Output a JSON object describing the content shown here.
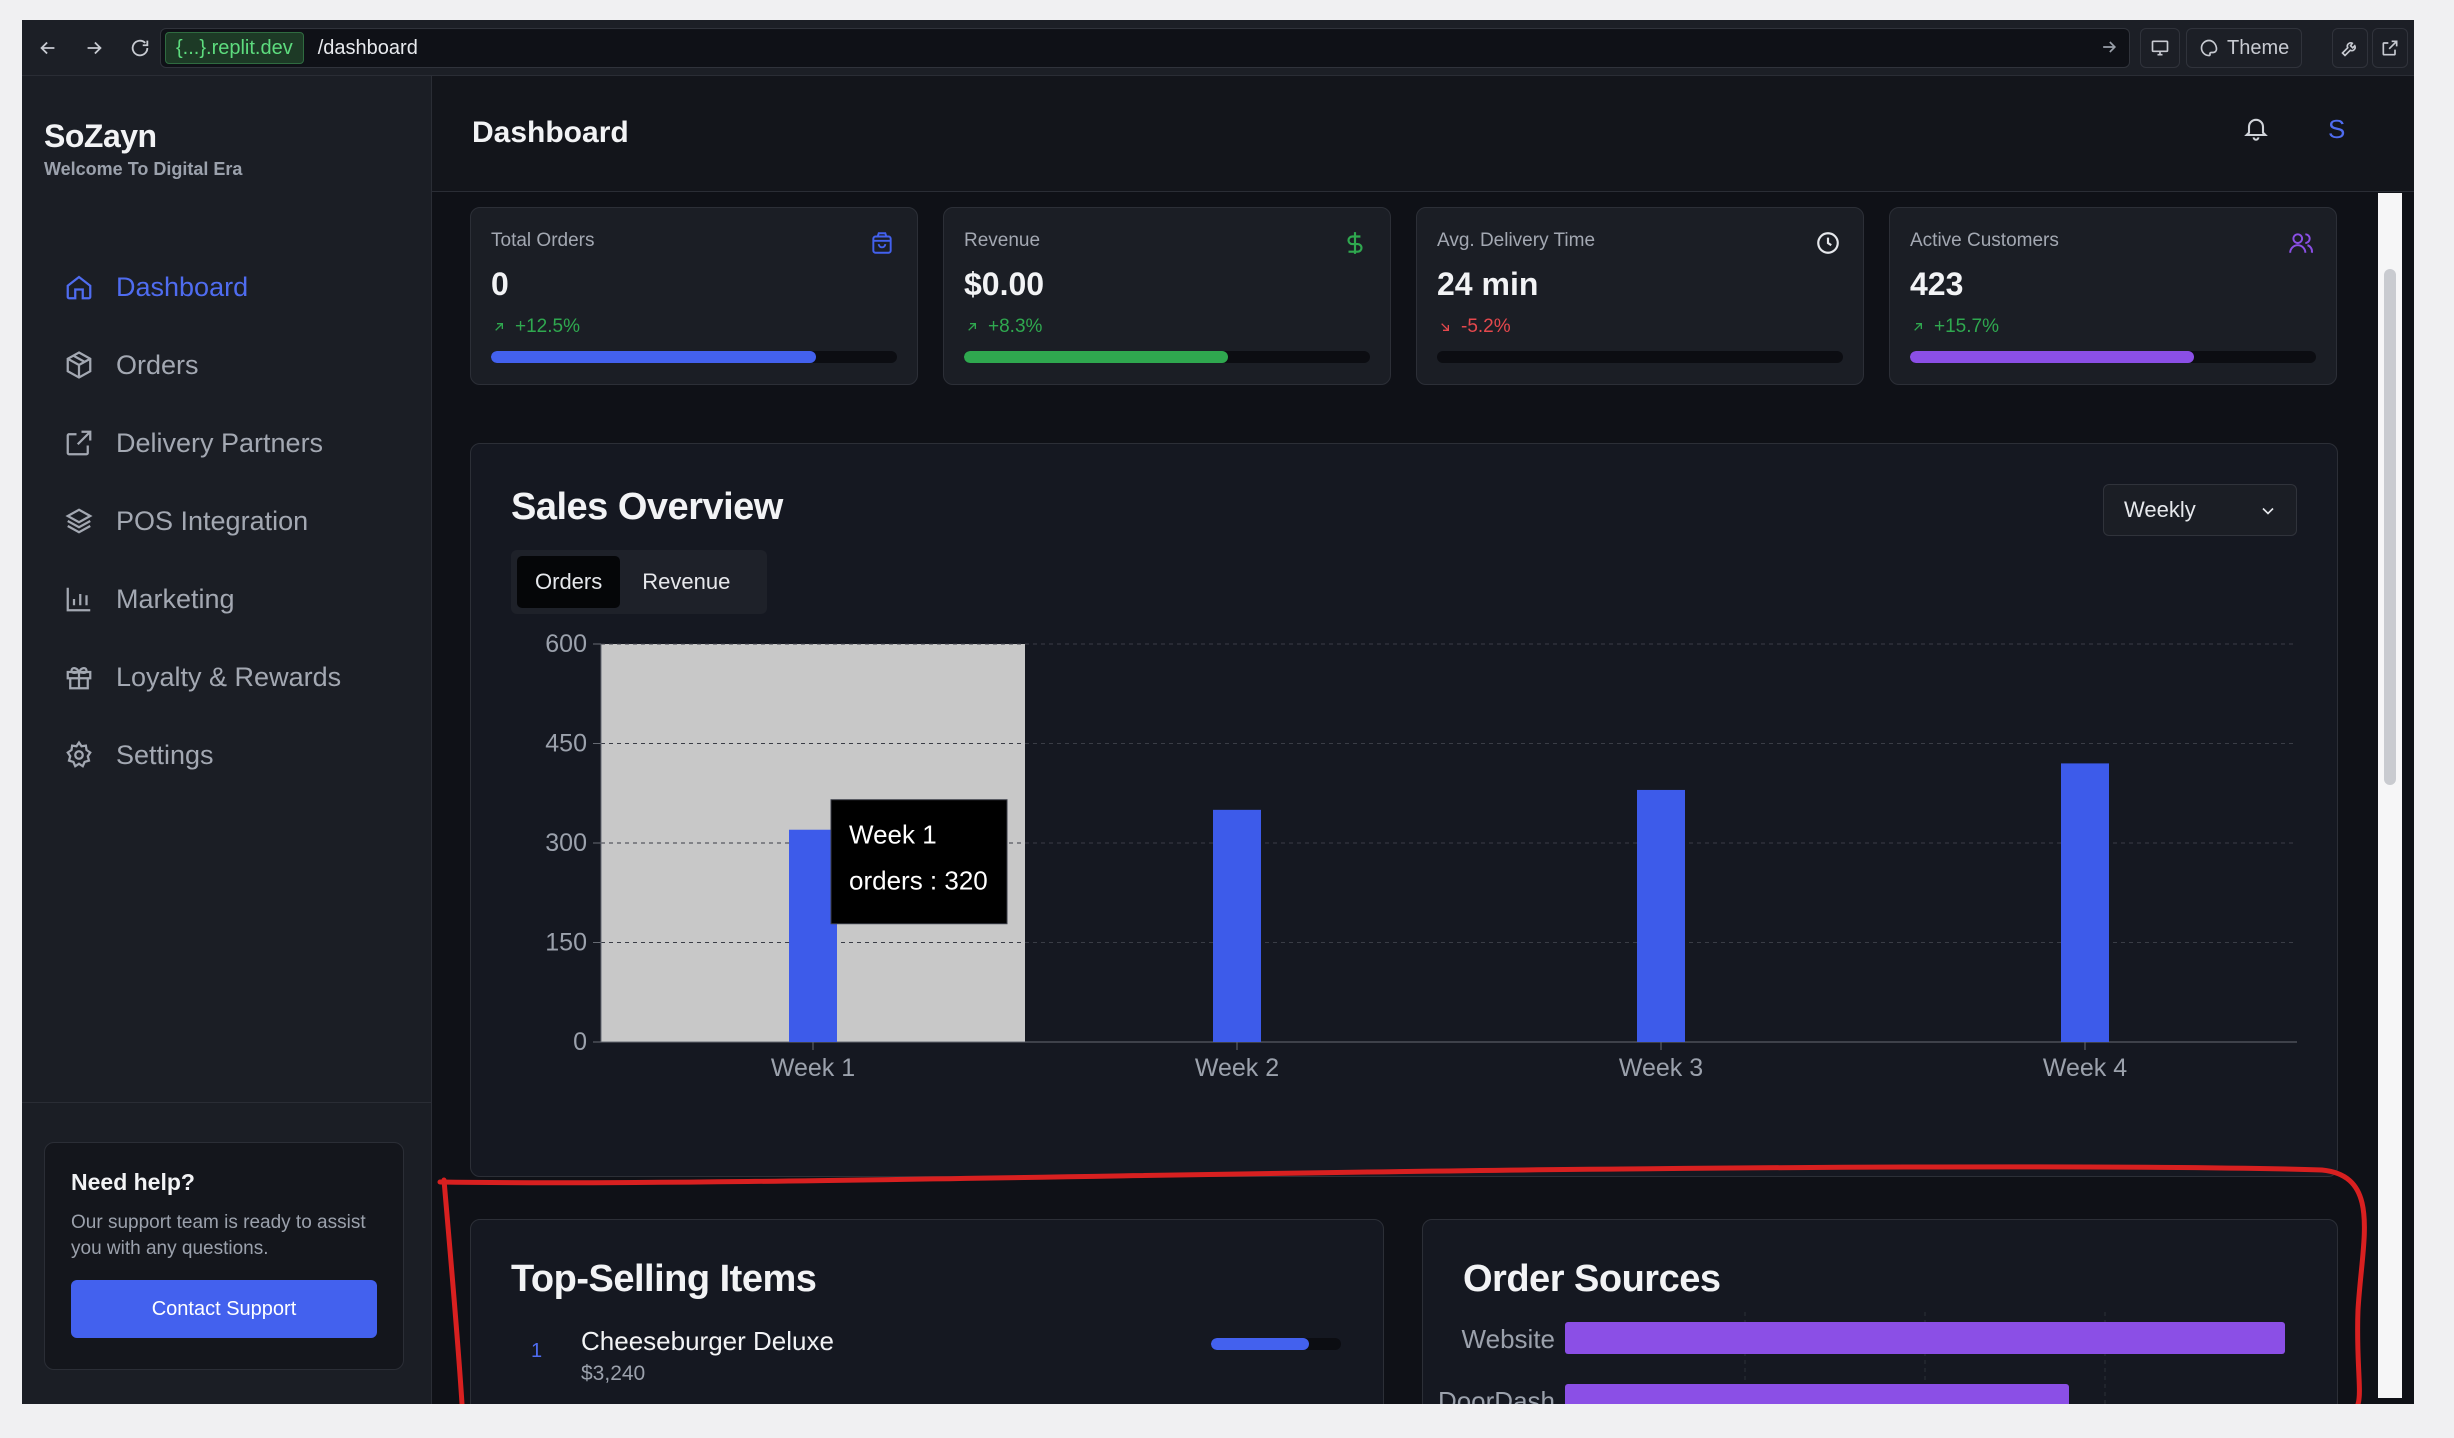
{
  "browser": {
    "url_host": "{...}.replit.dev",
    "url_path": "/dashboard",
    "theme_label": "Theme"
  },
  "sidebar": {
    "brand": "SoZayn",
    "tagline": "Welcome To Digital Era",
    "items": [
      {
        "label": "Dashboard",
        "icon": "home-icon",
        "active": true
      },
      {
        "label": "Orders",
        "icon": "package-icon",
        "active": false
      },
      {
        "label": "Delivery Partners",
        "icon": "external-link-icon",
        "active": false
      },
      {
        "label": "POS Integration",
        "icon": "layers-icon",
        "active": false
      },
      {
        "label": "Marketing",
        "icon": "bar-chart-icon",
        "active": false
      },
      {
        "label": "Loyalty & Rewards",
        "icon": "gift-icon",
        "active": false
      },
      {
        "label": "Settings",
        "icon": "settings-icon",
        "active": false
      }
    ],
    "help": {
      "title": "Need help?",
      "text": "Our support team is ready to assist you with any questions.",
      "button": "Contact Support"
    }
  },
  "header": {
    "title": "Dashboard",
    "avatar_initial": "S"
  },
  "stats": [
    {
      "label": "Total Orders",
      "value": "0",
      "change": "+12.5%",
      "trend": "up",
      "progress": 0.8,
      "color": "#4361ee",
      "icon": "shopping-bag-icon"
    },
    {
      "label": "Revenue",
      "value": "$0.00",
      "change": "+8.3%",
      "trend": "up",
      "progress": 0.65,
      "color": "#2fa84f",
      "icon": "dollar-icon"
    },
    {
      "label": "Avg. Delivery Time",
      "value": "24 min",
      "change": "-5.2%",
      "trend": "down",
      "progress": 0.0,
      "color": "#e5484d",
      "icon": "clock-icon"
    },
    {
      "label": "Active Customers",
      "value": "423",
      "change": "+15.7%",
      "trend": "up",
      "progress": 0.7,
      "color": "#8b4fe6",
      "icon": "users-icon"
    }
  ],
  "sales": {
    "title": "Sales Overview",
    "period": "Weekly",
    "tabs": [
      "Orders",
      "Revenue"
    ],
    "active_tab": "Orders",
    "tooltip": {
      "title": "Week 1",
      "text": "orders : 320"
    }
  },
  "chart_data": {
    "type": "bar",
    "categories": [
      "Week 1",
      "Week 2",
      "Week 3",
      "Week 4"
    ],
    "series": [
      {
        "name": "orders",
        "values": [
          320,
          350,
          380,
          420
        ]
      }
    ],
    "yticks": [
      0,
      150,
      300,
      450,
      600
    ],
    "ylim": [
      0,
      600
    ],
    "grid": true,
    "bar_color": "#3d5bea",
    "highlighted": "Week 1"
  },
  "top_items": {
    "title": "Top-Selling Items",
    "items": [
      {
        "rank": "1",
        "name": "Cheeseburger Deluxe",
        "price": "$3,240",
        "share": 0.75
      }
    ]
  },
  "order_sources": {
    "title": "Order Sources",
    "sources": [
      {
        "name": "Website",
        "share": 1.0
      },
      {
        "name": "DoorDash",
        "share": 0.7
      }
    ],
    "bar_color": "#8b4fe6"
  }
}
